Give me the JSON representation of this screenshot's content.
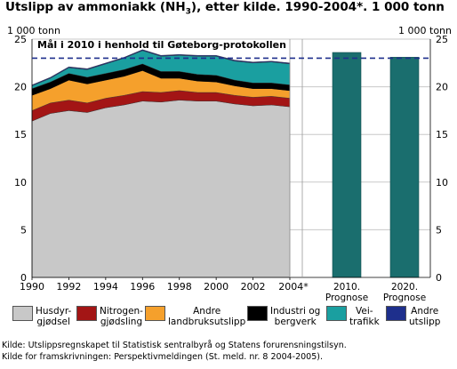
{
  "title_parts": {
    "main": "Utslipp av ammoniakk (NH",
    "sub": "3",
    "rest": "), etter kilde. 1990-2004*. 1 000 tonn"
  },
  "unit_left": "1 000 tonn",
  "unit_right": "1 000 tonn",
  "target_label": "Mål i 2010 i henhold til Gøteborg-protokollen",
  "legend": [
    {
      "label": "Husdyr-\ngjødsel",
      "color": "#c8c8c8"
    },
    {
      "label": "Nitrogen-\ngjødsling",
      "color": "#a31515"
    },
    {
      "label": "Andre\nlandbruksutslipp",
      "color": "#f5a02c"
    },
    {
      "label": "Industri og\nbergverk",
      "color": "#000000"
    },
    {
      "label": "Vei-\ntrafikk",
      "color": "#1a9fa0"
    },
    {
      "label": "Andre\nutslipp",
      "color": "#1e2f8c"
    }
  ],
  "sources": {
    "line1": "Kilde: Utslippsregnskapet til Statistisk sentralbyrå og Statens forurensningstilsyn.",
    "line2": "Kilde for framskrivningen: Perspektivmeldingen (St. meld. nr. 8 2004-2005)."
  },
  "chart_data": [
    {
      "type": "area",
      "stacked": true,
      "x": [
        1990,
        1991,
        1992,
        1993,
        1994,
        1995,
        1996,
        1997,
        1998,
        1999,
        2000,
        2001,
        2002,
        2003,
        2004
      ],
      "x_tick_labels": [
        "1990",
        "1992",
        "1994",
        "1996",
        "1998",
        "2000",
        "2002",
        "2004*"
      ],
      "series": [
        {
          "name": "Husdyrgjødsel",
          "color": "#c8c8c8",
          "values": [
            16.4,
            17.2,
            17.5,
            17.3,
            17.8,
            18.1,
            18.5,
            18.4,
            18.6,
            18.5,
            18.5,
            18.2,
            18.0,
            18.1,
            17.9
          ]
        },
        {
          "name": "Nitrogengjødsling",
          "color": "#a31515",
          "values": [
            1.1,
            1.1,
            1.1,
            1.0,
            1.0,
            1.0,
            1.0,
            1.0,
            1.0,
            0.9,
            0.9,
            0.9,
            0.9,
            0.9,
            0.9
          ]
        },
        {
          "name": "Andre landbruksutslipp",
          "color": "#f5a02c",
          "values": [
            1.6,
            1.5,
            2.1,
            2.0,
            1.9,
            2.0,
            2.2,
            1.5,
            1.3,
            1.2,
            1.1,
            1.0,
            0.9,
            0.8,
            0.8
          ]
        },
        {
          "name": "Industri og bergverk",
          "color": "#000000",
          "values": [
            0.7,
            0.7,
            0.7,
            0.7,
            0.7,
            0.7,
            0.7,
            0.7,
            0.7,
            0.7,
            0.7,
            0.6,
            0.6,
            0.6,
            0.6
          ]
        },
        {
          "name": "Veitrafikk",
          "color": "#1a9fa0",
          "values": [
            0.3,
            0.4,
            0.6,
            0.8,
            1.0,
            1.2,
            1.4,
            1.6,
            1.7,
            1.9,
            2.0,
            2.0,
            2.1,
            2.2,
            2.2
          ]
        },
        {
          "name": "Andre utslipp",
          "color": "#1e2f8c",
          "values": [
            0.1,
            0.1,
            0.1,
            0.1,
            0.1,
            0.1,
            0.1,
            0.1,
            0.1,
            0.1,
            0.1,
            0.1,
            0.1,
            0.1,
            0.1
          ]
        }
      ],
      "ylim": [
        0,
        25
      ],
      "y_ticks": [
        0,
        5,
        10,
        15,
        20,
        25
      ],
      "target_value": 23,
      "grid": "horizontal"
    },
    {
      "type": "bar",
      "categories": [
        "2010.\nPrognose",
        "2020.\nPrognose"
      ],
      "values": [
        23.6,
        23.1
      ],
      "color": "#1a6e6e",
      "ylim": [
        0,
        25
      ],
      "y_ticks": [
        0,
        5,
        10,
        15,
        20,
        25
      ]
    }
  ]
}
